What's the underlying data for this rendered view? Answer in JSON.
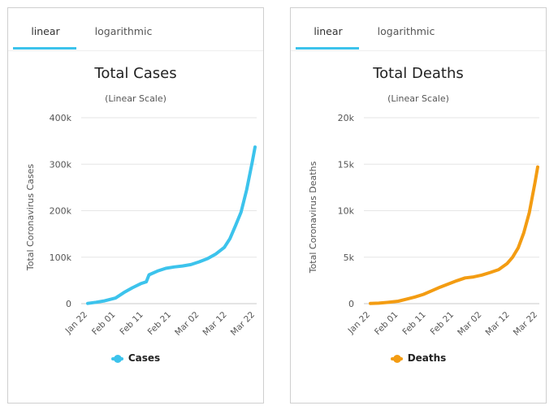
{
  "panels": [
    {
      "tabs": [
        "linear",
        "logarithmic"
      ],
      "title": "Total Cases",
      "subtitle": "(Linear Scale)",
      "legend": "Cases",
      "color": "#3cc3ec"
    },
    {
      "tabs": [
        "linear",
        "logarithmic"
      ],
      "title": "Total Deaths",
      "subtitle": "(Linear Scale)",
      "legend": "Deaths",
      "color": "#f39c12"
    }
  ],
  "chart_data": [
    {
      "type": "line",
      "title": "Total Cases",
      "subtitle": "(Linear Scale)",
      "ylabel": "Total Coronavirus Cases",
      "xlabel": "",
      "x_ticks": [
        "Jan 22",
        "Feb 01",
        "Feb 11",
        "Feb 21",
        "Mar 02",
        "Mar 12",
        "Mar 22"
      ],
      "y_ticks": [
        "0",
        "100k",
        "200k",
        "300k",
        "400k"
      ],
      "ylim": [
        0,
        400000
      ],
      "grid": true,
      "legend_position": "bottom",
      "series": [
        {
          "name": "Cases",
          "color": "#3cc3ec",
          "x": [
            "Jan 22",
            "Jan 25",
            "Jan 28",
            "Feb 01",
            "Feb 04",
            "Feb 07",
            "Feb 10",
            "Feb 12",
            "Feb 13",
            "Feb 16",
            "Feb 19",
            "Feb 22",
            "Feb 25",
            "Feb 28",
            "Mar 02",
            "Mar 05",
            "Mar 08",
            "Mar 11",
            "Mar 13",
            "Mar 15",
            "Mar 17",
            "Mar 19",
            "Mar 21",
            "Mar 22"
          ],
          "values": [
            600,
            2900,
            6000,
            12000,
            24000,
            34000,
            43000,
            47000,
            62000,
            70000,
            76000,
            79000,
            81000,
            84000,
            90000,
            97000,
            107000,
            121000,
            140000,
            168000,
            197000,
            245000,
            305000,
            337000
          ]
        }
      ]
    },
    {
      "type": "line",
      "title": "Total Deaths",
      "subtitle": "(Linear Scale)",
      "ylabel": "Total Coronavirus Deaths",
      "xlabel": "",
      "x_ticks": [
        "Jan 22",
        "Feb 01",
        "Feb 11",
        "Feb 21",
        "Mar 02",
        "Mar 12",
        "Mar 22"
      ],
      "y_ticks": [
        "0",
        "5k",
        "10k",
        "15k",
        "20k"
      ],
      "ylim": [
        0,
        20000
      ],
      "grid": true,
      "legend_position": "bottom",
      "series": [
        {
          "name": "Deaths",
          "color": "#f39c12",
          "x": [
            "Jan 22",
            "Jan 25",
            "Jan 28",
            "Feb 01",
            "Feb 04",
            "Feb 07",
            "Feb 10",
            "Feb 13",
            "Feb 16",
            "Feb 19",
            "Feb 22",
            "Feb 25",
            "Feb 28",
            "Mar 02",
            "Mar 05",
            "Mar 08",
            "Mar 11",
            "Mar 13",
            "Mar 15",
            "Mar 17",
            "Mar 19",
            "Mar 21",
            "Mar 22"
          ],
          "values": [
            17,
            56,
            133,
            259,
            490,
            720,
            1000,
            1380,
            1770,
            2120,
            2460,
            2770,
            2870,
            3070,
            3350,
            3660,
            4300,
            5000,
            6000,
            7600,
            9800,
            13000,
            14700
          ]
        }
      ]
    }
  ]
}
